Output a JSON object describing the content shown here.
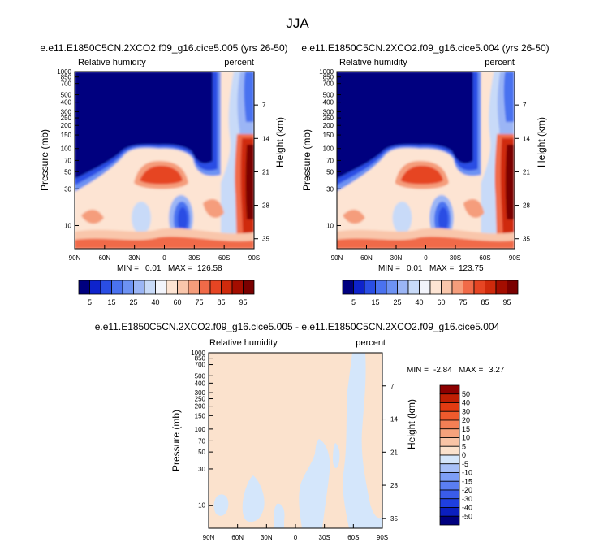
{
  "figure": {
    "title": "JJA"
  },
  "colors": {
    "rh_levels": [
      "#00007f",
      "#0e23cc",
      "#2a4ee4",
      "#4a72f0",
      "#6d92f3",
      "#9bb5f5",
      "#c8daf8",
      "#f2f4fb",
      "#fde4d3",
      "#f9c6ab",
      "#f59d7b",
      "#f06a48",
      "#e64523",
      "#cf2a0c",
      "#a40d00",
      "#7a0000"
    ],
    "diff_levels": [
      "#00007f",
      "#0b1fc0",
      "#1f3fe0",
      "#3a5cea",
      "#5a7ef2",
      "#7d9ef6",
      "#a7c0f8",
      "#d4e6fb",
      "#fbe2cd",
      "#f8c4a6",
      "#f5a27c",
      "#f37f55",
      "#ef5a2d",
      "#e33b12",
      "#bf1f03",
      "#8c0000"
    ]
  },
  "chart_data": [
    {
      "id": "panel-1",
      "type": "heatmap",
      "title": "e.e11.E1850C5CN.2XCO2.f09_g16.cice5.005 (yrs 26-50)",
      "left_label": "Relative humidity",
      "right_label": "percent",
      "ylabel": "Pressure (mb)",
      "y2label": "Height (km)",
      "x_ticks": [
        "90N",
        "60N",
        "30N",
        "0",
        "30S",
        "60S",
        "90S"
      ],
      "y_ticks": [
        10,
        30,
        50,
        70,
        100,
        150,
        200,
        250,
        300,
        400,
        500,
        700,
        850,
        1000
      ],
      "height_ticks": [
        35,
        28,
        21,
        14,
        7
      ],
      "xlim": [
        90,
        -90
      ],
      "ylim": [
        1000,
        5
      ],
      "min_label": "MIN =",
      "min_value": "0.01",
      "max_label": "MAX =",
      "max_value": "126.58"
    },
    {
      "id": "panel-2",
      "type": "heatmap",
      "title": "e.e11.E1850C5CN.2XCO2.f09_g16.cice5.004 (yrs 26-50)",
      "left_label": "Relative humidity",
      "right_label": "percent",
      "ylabel": "Pressure (mb)",
      "y2label": "Height (km)",
      "x_ticks": [
        "90N",
        "60N",
        "30N",
        "0",
        "30S",
        "60S",
        "90S"
      ],
      "y_ticks": [
        10,
        30,
        50,
        70,
        100,
        150,
        200,
        250,
        300,
        400,
        500,
        700,
        850,
        1000
      ],
      "height_ticks": [
        35,
        28,
        21,
        14,
        7
      ],
      "xlim": [
        90,
        -90
      ],
      "ylim": [
        1000,
        5
      ],
      "min_label": "MIN =",
      "min_value": "0.01",
      "max_label": "MAX =",
      "max_value": "123.75"
    },
    {
      "id": "panel-3",
      "type": "heatmap",
      "title": "e.e11.E1850C5CN.2XCO2.f09_g16.cice5.005 - e.e11.E1850C5CN.2XCO2.f09_g16.cice5.004",
      "left_label": "Relative humidity",
      "right_label": "percent",
      "ylabel": "Pressure (mb)",
      "y2label": "Height (km)",
      "x_ticks": [
        "90N",
        "60N",
        "30N",
        "0",
        "30S",
        "60S",
        "90S"
      ],
      "y_ticks": [
        10,
        30,
        50,
        70,
        100,
        150,
        200,
        250,
        300,
        400,
        500,
        700,
        850,
        1000
      ],
      "height_ticks": [
        35,
        28,
        21,
        14,
        7
      ],
      "xlim": [
        90,
        -90
      ],
      "ylim": [
        1000,
        5
      ],
      "min_label": "MIN =",
      "min_value": "-2.84",
      "max_label": "MAX =",
      "max_value": "3.27"
    }
  ],
  "colorbars": {
    "rh_labels": [
      "5",
      "15",
      "25",
      "40",
      "60",
      "75",
      "85",
      "95"
    ],
    "diff_labels": [
      "50",
      "40",
      "30",
      "20",
      "15",
      "10",
      "5",
      "0",
      "-5",
      "-10",
      "-15",
      "-20",
      "-30",
      "-40",
      "-50"
    ]
  }
}
